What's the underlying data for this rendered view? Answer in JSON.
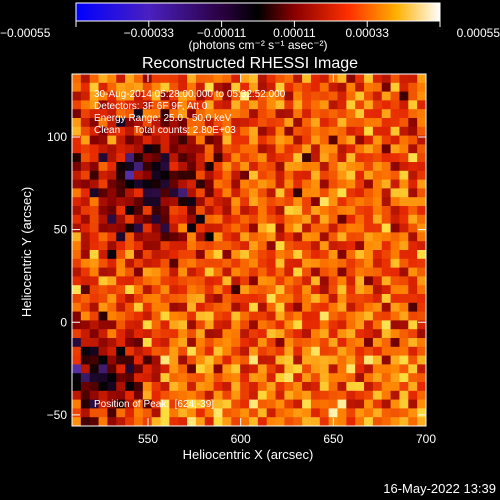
{
  "chart_data": {
    "type": "heatmap",
    "title": "Reconstructed RHESSI Image",
    "xlabel": "Heliocentric X (arcsec)",
    "ylabel": "Heliocentric Y (arcsec)",
    "xlim": [
      509,
      700
    ],
    "ylim": [
      -56,
      134
    ],
    "xticks": [
      550,
      600,
      650,
      700
    ],
    "xtick_labels": [
      "550",
      "600",
      "650",
      "700"
    ],
    "yticks": [
      -50,
      0,
      50,
      100
    ],
    "ytick_labels": [
      "−50",
      "0",
      "50",
      "100"
    ],
    "colorbar": {
      "range": [
        -0.00055,
        0.00055
      ],
      "ticks": [
        -0.00055,
        -0.00033,
        -0.00011,
        0.00011,
        0.00033,
        0.00055
      ],
      "tick_labels": [
        "−0.00055",
        "−0.00033",
        "−0.00011",
        "0.00011",
        "0.00033",
        "0.00055"
      ],
      "units": "(photons cm⁻² s⁻¹ asec⁻²)",
      "colormap": [
        "#0000ff",
        "#5a2a9c",
        "#000000",
        "#a00000",
        "#ff3300",
        "#ffaa00",
        "#ffff88",
        "#ffffff"
      ]
    },
    "peak": [
      624,
      -39
    ],
    "grid": false,
    "legend": "none"
  },
  "annotations": {
    "line1": "30-Aug-2014 05:28:00.000 to 05:32:52.000",
    "line2": "Detectors: 3F 6F 9F, Att 0",
    "line3": "Energy Range: 25.0 - 50.0 keV",
    "line4": "Clean     Total counts: 2.80E+03",
    "peak_label": "Position of Peak:  [624,-39]"
  },
  "footer": {
    "timestamp": "16-May-2022 13:39"
  },
  "colors": {
    "background": "#000000",
    "foreground": "#ffffff"
  }
}
